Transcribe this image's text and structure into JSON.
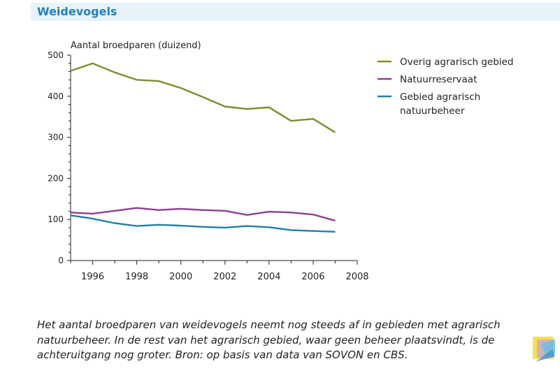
{
  "header": {
    "title": "Weidevogels"
  },
  "caption": {
    "text": "Het aantal broedparen van weidevogels neemt nog steeds af in gebieden met agrarisch natuurbeheer. In de rest van het agrarisch gebied, waar geen beheer plaatsvindt, is de achteruitgang nog groter.   Bron: op basis van data van SOVON en CBS."
  },
  "chart_data": {
    "type": "line",
    "title": "",
    "ylabel": "Aantal broedparen (duizend)",
    "xlabel": "",
    "xlim": [
      1995,
      2008
    ],
    "ylim": [
      0,
      500
    ],
    "x_ticks": [
      1996,
      1998,
      2000,
      2002,
      2004,
      2006,
      2008
    ],
    "y_ticks": [
      0,
      100,
      200,
      300,
      400,
      500
    ],
    "grid": false,
    "legend_position": "right",
    "x": [
      1995,
      1996,
      1997,
      1998,
      1999,
      2000,
      2001,
      2002,
      2003,
      2004,
      2005,
      2006,
      2007
    ],
    "series": [
      {
        "name": "Overig agrarisch gebied",
        "color": "#7d8c32",
        "values": [
          462,
          480,
          458,
          440,
          437,
          420,
          398,
          375,
          369,
          373,
          340,
          345,
          312
        ]
      },
      {
        "name": "Natuurreservaat",
        "color": "#8e3f91",
        "values": [
          117,
          114,
          121,
          128,
          123,
          126,
          123,
          121,
          111,
          119,
          117,
          112,
          97
        ]
      },
      {
        "name": "Gebied agrarisch natuurbeheer",
        "color": "#1f7fa8",
        "values": [
          110,
          102,
          91,
          84,
          87,
          85,
          82,
          80,
          84,
          81,
          74,
          72,
          70
        ]
      }
    ]
  }
}
